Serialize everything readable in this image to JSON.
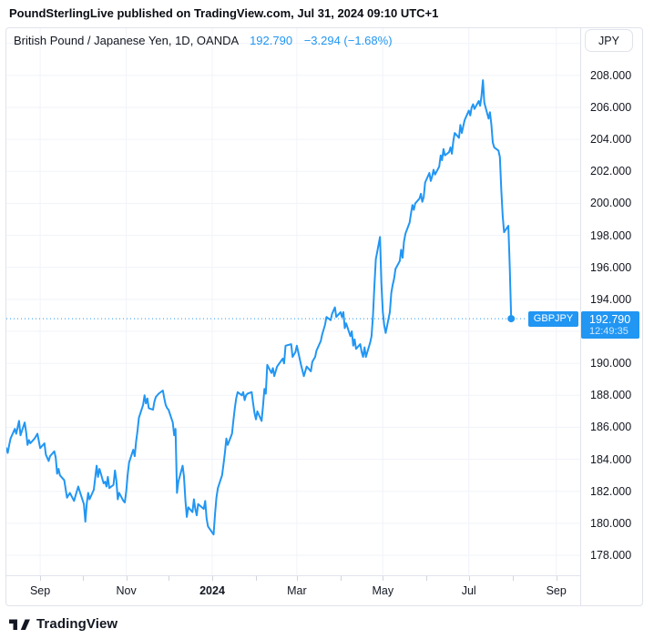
{
  "header": {
    "text": "PoundSterlingLive published on TradingView.com, Jul 31, 2024 09:10 UTC+1"
  },
  "widget": {
    "title": {
      "symbol_text": "British Pound / Japanese Yen, 1D, OANDA",
      "price": "192.790",
      "change": "−3.294 (−1.68%)"
    },
    "currency_button": "JPY",
    "last_price_tag": {
      "symbol": "GBPJPY",
      "price": "192.790",
      "countdown": "12:49:35"
    }
  },
  "footer": {
    "brand": "TradingView"
  },
  "colors": {
    "accent": "#2196F3",
    "grid": "#f0f3fa",
    "border": "#e0e3eb",
    "text": "#131722",
    "tick": "#d1d4dc",
    "tag_text": "#ffffff"
  },
  "chart_data": {
    "type": "line",
    "title": "British Pound / Japanese Yen, 1D, OANDA",
    "symbol": "GBPJPY",
    "exchange": "OANDA",
    "interval": "1D",
    "unit": "JPY",
    "legend_position": "top-left",
    "grid": true,
    "last_price": 192.79,
    "change": -3.294,
    "change_pct": -1.68,
    "countdown": "12:49:35",
    "x_range": [
      "2023-08-08",
      "2024-09-18"
    ],
    "ylim": [
      176.75,
      210.95
    ],
    "xlabel": "",
    "ylabel": "JPY",
    "grid_prices": [
      178,
      180,
      182,
      184,
      186,
      188,
      190,
      192,
      194,
      196,
      198,
      200,
      202,
      204,
      206,
      208,
      210
    ],
    "price_axis_labels": [
      {
        "value": 208,
        "label": "208.000"
      },
      {
        "value": 206,
        "label": "206.000"
      },
      {
        "value": 204,
        "label": "204.000"
      },
      {
        "value": 202,
        "label": "202.000"
      },
      {
        "value": 200,
        "label": "200.000"
      },
      {
        "value": 198,
        "label": "198.000"
      },
      {
        "value": 196,
        "label": "196.000"
      },
      {
        "value": 194,
        "label": "194.000"
      },
      {
        "value": 190,
        "label": "190.000"
      },
      {
        "value": 188,
        "label": "188.000"
      },
      {
        "value": 186,
        "label": "186.000"
      },
      {
        "value": 184,
        "label": "184.000"
      },
      {
        "value": 182,
        "label": "182.000"
      },
      {
        "value": 180,
        "label": "180.000"
      },
      {
        "value": 178,
        "label": "178.000"
      }
    ],
    "time_axis": [
      {
        "label": "Sep",
        "date": "2023-09-01",
        "bold": false
      },
      {
        "label": "Nov",
        "date": "2023-11-01",
        "bold": false
      },
      {
        "label": "2024",
        "date": "2024-01-01",
        "bold": true
      },
      {
        "label": "Mar",
        "date": "2024-03-01",
        "bold": false
      },
      {
        "label": "May",
        "date": "2024-05-01",
        "bold": false
      },
      {
        "label": "Jul",
        "date": "2024-07-01",
        "bold": false
      },
      {
        "label": "Sep",
        "date": "2024-09-01",
        "bold": false
      }
    ],
    "month_ticks": [
      "2023-09-01",
      "2023-10-01",
      "2023-11-01",
      "2023-12-01",
      "2024-01-01",
      "2024-02-01",
      "2024-03-01",
      "2024-04-01",
      "2024-05-01",
      "2024-06-01",
      "2024-07-01",
      "2024-08-01",
      "2024-09-01"
    ],
    "points": [
      [
        "2023-08-08",
        184.7
      ],
      [
        "2023-08-09",
        184.4
      ],
      [
        "2023-08-10",
        184.9
      ],
      [
        "2023-08-11",
        185.3
      ],
      [
        "2023-08-14",
        185.9
      ],
      [
        "2023-08-15",
        185.6
      ],
      [
        "2023-08-16",
        186.0
      ],
      [
        "2023-08-17",
        186.4
      ],
      [
        "2023-08-18",
        185.5
      ],
      [
        "2023-08-21",
        186.3
      ],
      [
        "2023-08-22",
        185.7
      ],
      [
        "2023-08-23",
        184.9
      ],
      [
        "2023-08-24",
        185.2
      ],
      [
        "2023-08-25",
        185.0
      ],
      [
        "2023-08-28",
        185.3
      ],
      [
        "2023-08-30",
        185.6
      ],
      [
        "2023-09-01",
        184.7
      ],
      [
        "2023-09-04",
        185.0
      ],
      [
        "2023-09-05",
        184.3
      ],
      [
        "2023-09-07",
        183.9
      ],
      [
        "2023-09-08",
        184.2
      ],
      [
        "2023-09-11",
        184.5
      ],
      [
        "2023-09-12",
        184.1
      ],
      [
        "2023-09-13",
        183.1
      ],
      [
        "2023-09-14",
        183.4
      ],
      [
        "2023-09-15",
        183.0
      ],
      [
        "2023-09-18",
        182.7
      ],
      [
        "2023-09-20",
        181.6
      ],
      [
        "2023-09-22",
        181.9
      ],
      [
        "2023-09-25",
        181.4
      ],
      [
        "2023-09-26",
        181.7
      ],
      [
        "2023-09-28",
        182.3
      ],
      [
        "2023-09-29",
        182.0
      ],
      [
        "2023-10-02",
        181.2
      ],
      [
        "2023-10-03",
        180.1
      ],
      [
        "2023-10-04",
        181.2
      ],
      [
        "2023-10-05",
        181.9
      ],
      [
        "2023-10-06",
        181.5
      ],
      [
        "2023-10-09",
        182.1
      ],
      [
        "2023-10-11",
        183.6
      ],
      [
        "2023-10-12",
        182.9
      ],
      [
        "2023-10-13",
        183.4
      ],
      [
        "2023-10-16",
        182.5
      ],
      [
        "2023-10-17",
        182.6
      ],
      [
        "2023-10-18",
        182.3
      ],
      [
        "2023-10-19",
        182.9
      ],
      [
        "2023-10-20",
        182.2
      ],
      [
        "2023-10-23",
        182.4
      ],
      [
        "2023-10-24",
        183.3
      ],
      [
        "2023-10-25",
        182.7
      ],
      [
        "2023-10-26",
        181.5
      ],
      [
        "2023-10-27",
        181.9
      ],
      [
        "2023-10-30",
        181.4
      ],
      [
        "2023-10-31",
        181.3
      ],
      [
        "2023-11-01",
        182.0
      ],
      [
        "2023-11-02",
        183.0
      ],
      [
        "2023-11-03",
        183.8
      ],
      [
        "2023-11-06",
        184.6
      ],
      [
        "2023-11-07",
        184.2
      ],
      [
        "2023-11-08",
        185.1
      ],
      [
        "2023-11-09",
        185.8
      ],
      [
        "2023-11-10",
        186.6
      ],
      [
        "2023-11-13",
        187.4
      ],
      [
        "2023-11-14",
        188.0
      ],
      [
        "2023-11-15",
        187.5
      ],
      [
        "2023-11-16",
        187.8
      ],
      [
        "2023-11-17",
        187.2
      ],
      [
        "2023-11-20",
        187.1
      ],
      [
        "2023-11-21",
        187.6
      ],
      [
        "2023-11-22",
        187.9
      ],
      [
        "2023-11-24",
        188.1
      ],
      [
        "2023-11-27",
        188.3
      ],
      [
        "2023-11-28",
        187.8
      ],
      [
        "2023-11-29",
        187.4
      ],
      [
        "2023-11-30",
        187.2
      ],
      [
        "2023-12-01",
        187.1
      ],
      [
        "2023-12-04",
        186.3
      ],
      [
        "2023-12-05",
        185.5
      ],
      [
        "2023-12-06",
        185.9
      ],
      [
        "2023-12-07",
        181.9
      ],
      [
        "2023-12-08",
        182.6
      ],
      [
        "2023-12-11",
        183.6
      ],
      [
        "2023-12-12",
        182.9
      ],
      [
        "2023-12-13",
        181.4
      ],
      [
        "2023-12-14",
        180.4
      ],
      [
        "2023-12-15",
        181.0
      ],
      [
        "2023-12-18",
        180.7
      ],
      [
        "2023-12-19",
        181.5
      ],
      [
        "2023-12-20",
        180.9
      ],
      [
        "2023-12-21",
        180.5
      ],
      [
        "2023-12-22",
        181.2
      ],
      [
        "2023-12-26",
        180.9
      ],
      [
        "2023-12-27",
        181.4
      ],
      [
        "2023-12-28",
        180.3
      ],
      [
        "2023-12-29",
        179.8
      ],
      [
        "2024-01-02",
        179.3
      ],
      [
        "2024-01-03",
        180.6
      ],
      [
        "2024-01-04",
        181.6
      ],
      [
        "2024-01-05",
        182.2
      ],
      [
        "2024-01-08",
        183.0
      ],
      [
        "2024-01-09",
        183.7
      ],
      [
        "2024-01-10",
        184.4
      ],
      [
        "2024-01-11",
        185.3
      ],
      [
        "2024-01-12",
        184.9
      ],
      [
        "2024-01-15",
        185.6
      ],
      [
        "2024-01-16",
        186.4
      ],
      [
        "2024-01-17",
        187.2
      ],
      [
        "2024-01-18",
        187.8
      ],
      [
        "2024-01-19",
        188.2
      ],
      [
        "2024-01-22",
        188.0
      ],
      [
        "2024-01-23",
        188.2
      ],
      [
        "2024-01-24",
        187.7
      ],
      [
        "2024-01-25",
        188.0
      ],
      [
        "2024-01-26",
        188.1
      ],
      [
        "2024-01-29",
        188.2
      ],
      [
        "2024-01-30",
        187.5
      ],
      [
        "2024-01-31",
        186.9
      ],
      [
        "2024-02-01",
        186.5
      ],
      [
        "2024-02-02",
        187.0
      ],
      [
        "2024-02-05",
        186.4
      ],
      [
        "2024-02-06",
        187.3
      ],
      [
        "2024-02-07",
        188.4
      ],
      [
        "2024-02-08",
        188.1
      ],
      [
        "2024-02-09",
        189.9
      ],
      [
        "2024-02-12",
        189.4
      ],
      [
        "2024-02-13",
        189.7
      ],
      [
        "2024-02-14",
        189.2
      ],
      [
        "2024-02-16",
        189.8
      ],
      [
        "2024-02-20",
        190.3
      ],
      [
        "2024-02-21",
        190.0
      ],
      [
        "2024-02-22",
        191.1
      ],
      [
        "2024-02-26",
        191.2
      ],
      [
        "2024-02-27",
        190.4
      ],
      [
        "2024-02-29",
        190.7
      ],
      [
        "2024-03-01",
        191.1
      ],
      [
        "2024-03-04",
        189.9
      ],
      [
        "2024-03-06",
        189.2
      ],
      [
        "2024-03-08",
        189.8
      ],
      [
        "2024-03-11",
        189.5
      ],
      [
        "2024-03-12",
        190.1
      ],
      [
        "2024-03-14",
        190.4
      ],
      [
        "2024-03-15",
        190.8
      ],
      [
        "2024-03-18",
        191.4
      ],
      [
        "2024-03-19",
        191.8
      ],
      [
        "2024-03-21",
        192.4
      ],
      [
        "2024-03-22",
        192.9
      ],
      [
        "2024-03-25",
        192.7
      ],
      [
        "2024-03-26",
        193.1
      ],
      [
        "2024-03-28",
        193.5
      ],
      [
        "2024-03-29",
        192.9
      ],
      [
        "2024-04-01",
        193.2
      ],
      [
        "2024-04-02",
        192.9
      ],
      [
        "2024-04-03",
        193.2
      ],
      [
        "2024-04-04",
        192.2
      ],
      [
        "2024-04-05",
        192.5
      ],
      [
        "2024-04-08",
        191.7
      ],
      [
        "2024-04-09",
        192.0
      ],
      [
        "2024-04-10",
        191.1
      ],
      [
        "2024-04-11",
        191.5
      ],
      [
        "2024-04-12",
        190.9
      ],
      [
        "2024-04-15",
        191.2
      ],
      [
        "2024-04-16",
        190.7
      ],
      [
        "2024-04-17",
        190.4
      ],
      [
        "2024-04-18",
        191.0
      ],
      [
        "2024-04-19",
        190.4
      ],
      [
        "2024-04-22",
        191.3
      ],
      [
        "2024-04-23",
        191.7
      ],
      [
        "2024-04-24",
        193.0
      ],
      [
        "2024-04-25",
        194.8
      ],
      [
        "2024-04-26",
        196.5
      ],
      [
        "2024-04-29",
        197.9
      ],
      [
        "2024-04-30",
        195.0
      ],
      [
        "2024-05-01",
        193.2
      ],
      [
        "2024-05-02",
        192.4
      ],
      [
        "2024-05-03",
        191.9
      ],
      [
        "2024-05-06",
        193.2
      ],
      [
        "2024-05-07",
        194.4
      ],
      [
        "2024-05-08",
        194.9
      ],
      [
        "2024-05-09",
        195.3
      ],
      [
        "2024-05-10",
        195.9
      ],
      [
        "2024-05-13",
        196.4
      ],
      [
        "2024-05-14",
        197.1
      ],
      [
        "2024-05-15",
        196.6
      ],
      [
        "2024-05-16",
        197.6
      ],
      [
        "2024-05-17",
        198.1
      ],
      [
        "2024-05-20",
        198.8
      ],
      [
        "2024-05-21",
        199.4
      ],
      [
        "2024-05-22",
        199.9
      ],
      [
        "2024-05-23",
        199.6
      ],
      [
        "2024-05-24",
        200.0
      ],
      [
        "2024-05-27",
        200.3
      ],
      [
        "2024-05-28",
        200.6
      ],
      [
        "2024-05-29",
        200.1
      ],
      [
        "2024-05-30",
        200.4
      ],
      [
        "2024-05-31",
        201.3
      ],
      [
        "2024-06-03",
        201.9
      ],
      [
        "2024-06-04",
        201.4
      ],
      [
        "2024-06-05",
        201.7
      ],
      [
        "2024-06-06",
        202.1
      ],
      [
        "2024-06-07",
        201.8
      ],
      [
        "2024-06-10",
        202.3
      ],
      [
        "2024-06-11",
        203.0
      ],
      [
        "2024-06-12",
        202.7
      ],
      [
        "2024-06-13",
        203.4
      ],
      [
        "2024-06-14",
        203.0
      ],
      [
        "2024-06-17",
        203.2
      ],
      [
        "2024-06-18",
        203.5
      ],
      [
        "2024-06-19",
        203.1
      ],
      [
        "2024-06-20",
        203.9
      ],
      [
        "2024-06-21",
        204.4
      ],
      [
        "2024-06-24",
        204.1
      ],
      [
        "2024-06-25",
        204.9
      ],
      [
        "2024-06-26",
        204.4
      ],
      [
        "2024-06-27",
        204.8
      ],
      [
        "2024-06-28",
        205.2
      ],
      [
        "2024-07-01",
        205.8
      ],
      [
        "2024-07-02",
        205.5
      ],
      [
        "2024-07-03",
        206.0
      ],
      [
        "2024-07-04",
        206.2
      ],
      [
        "2024-07-05",
        205.9
      ],
      [
        "2024-07-08",
        206.4
      ],
      [
        "2024-07-09",
        206.1
      ],
      [
        "2024-07-10",
        206.7
      ],
      [
        "2024-07-11",
        207.7
      ],
      [
        "2024-07-12",
        206.3
      ],
      [
        "2024-07-15",
        205.3
      ],
      [
        "2024-07-16",
        205.7
      ],
      [
        "2024-07-17",
        204.9
      ],
      [
        "2024-07-18",
        203.8
      ],
      [
        "2024-07-19",
        203.5
      ],
      [
        "2024-07-22",
        203.3
      ],
      [
        "2024-07-23",
        202.9
      ],
      [
        "2024-07-24",
        200.9
      ],
      [
        "2024-07-25",
        199.2
      ],
      [
        "2024-07-26",
        198.2
      ],
      [
        "2024-07-29",
        198.6
      ],
      [
        "2024-07-30",
        196.1
      ],
      [
        "2024-07-31",
        192.79
      ]
    ]
  }
}
